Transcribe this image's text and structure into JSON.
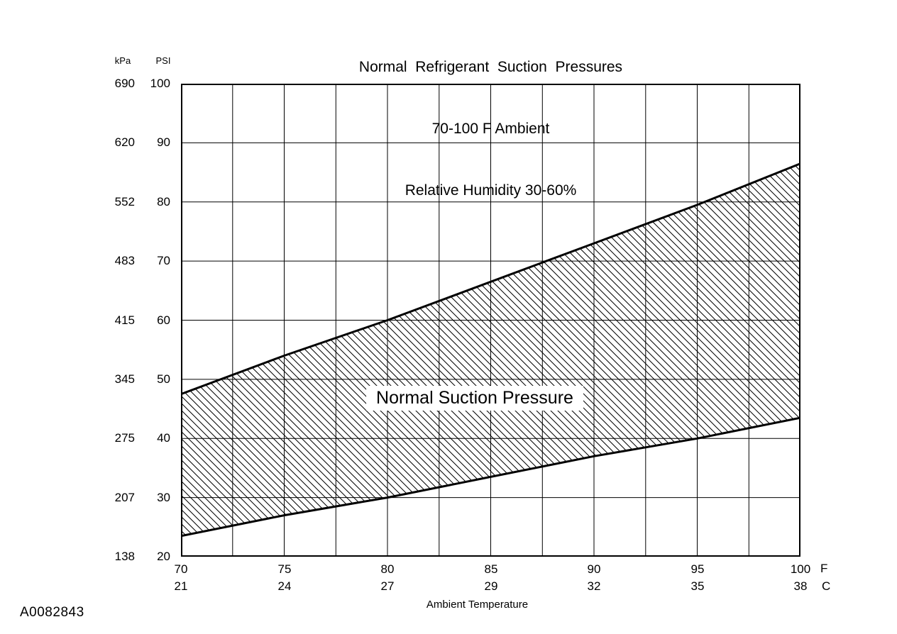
{
  "page": {
    "figure_id": "A0082843",
    "background": "#ffffff"
  },
  "chart_data": {
    "type": "area",
    "title": "Normal  Refrigerant  Suction  Pressures",
    "subtitle_ambient": "70-100 F Ambient",
    "subtitle_humidity": "Relative Humidity 30-60%",
    "band_label": "Normal Suction Pressure",
    "x_axis": {
      "label": "Ambient Temperature",
      "unit_primary": "F",
      "unit_secondary": "C",
      "range_f": [
        70,
        100
      ],
      "minor_step_f": 2.5,
      "ticks_f": [
        70,
        75,
        80,
        85,
        90,
        95,
        100
      ],
      "ticks_c": [
        21,
        24,
        27,
        29,
        32,
        35,
        38
      ]
    },
    "y_axis": {
      "unit_primary": "PSI",
      "unit_secondary": "kPa",
      "range_psi": [
        20,
        100
      ],
      "ticks_psi": [
        100,
        90,
        80,
        70,
        60,
        50,
        40,
        30,
        20
      ],
      "ticks_kpa": [
        690,
        620,
        552,
        483,
        415,
        345,
        275,
        207,
        138
      ]
    },
    "series": [
      {
        "name": "upper-limit",
        "x_f": [
          70,
          75,
          80,
          85,
          90,
          95,
          100
        ],
        "psi": [
          47.5,
          54,
          60,
          66.5,
          73,
          79.5,
          86.5
        ]
      },
      {
        "name": "lower-limit",
        "x_f": [
          70,
          75,
          80,
          85,
          90,
          95,
          100
        ],
        "psi": [
          23.5,
          27,
          30,
          33.5,
          37,
          40,
          43.5
        ]
      }
    ],
    "grid": {
      "show": true,
      "color": "#000000"
    },
    "hatch": {
      "style": "backslash-diagonal",
      "color": "#000000",
      "spacing_px": 10
    },
    "accent_color": "#000000"
  }
}
